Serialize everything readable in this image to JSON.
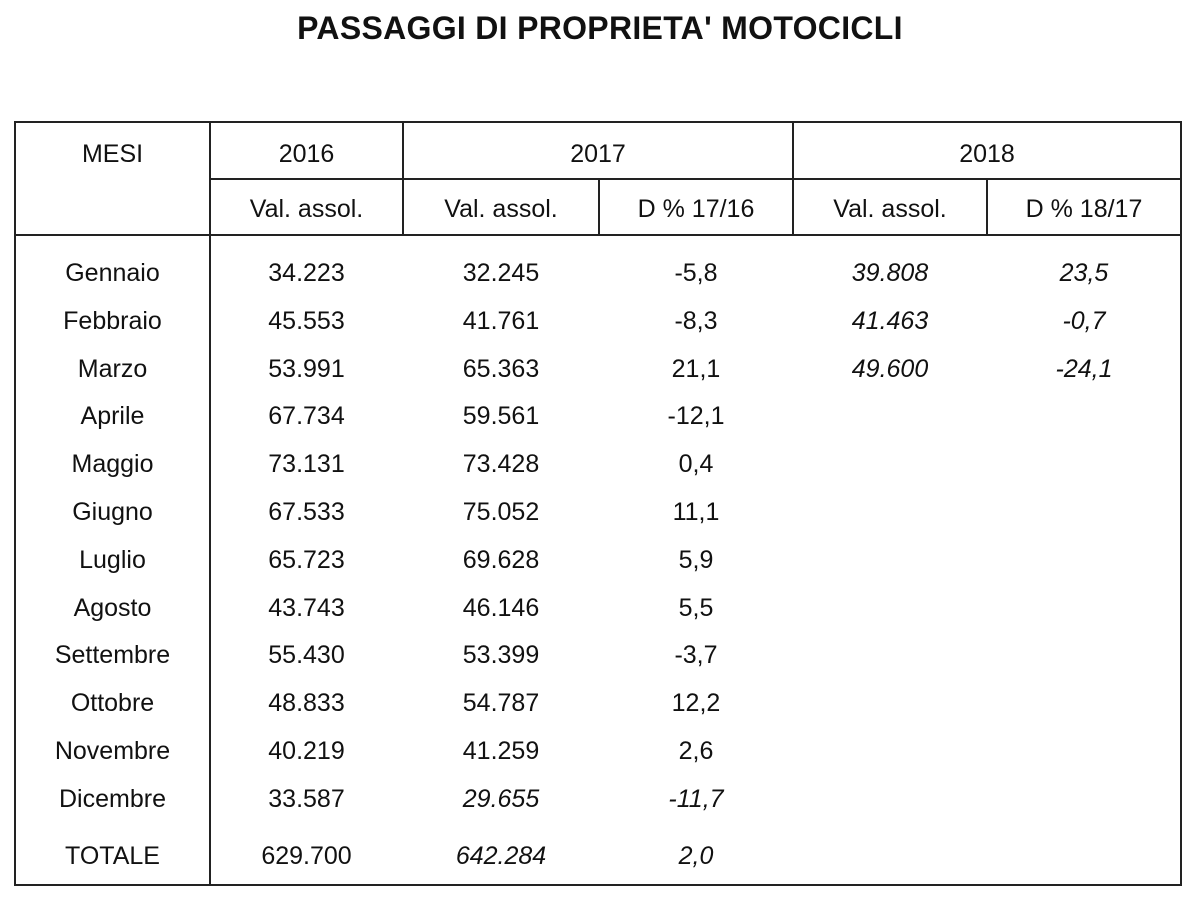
{
  "title": "PASSAGGI DI PROPRIETA' MOTOCICLI",
  "header": {
    "mesi": "MESI",
    "year_2016": "2016",
    "year_2017": "2017",
    "year_2018": "2018",
    "val_2016": "Val. assol.",
    "val_2017": "Val. assol.",
    "delta_17_16": "D % 17/16",
    "val_2018": "Val. assol.",
    "delta_18_17": "D % 18/17"
  },
  "rows": [
    {
      "mese": "Gennaio",
      "v2016": "34.223",
      "v2017": "32.245",
      "d1716": "-5,8",
      "v2018": "39.808",
      "d1817": "23,5"
    },
    {
      "mese": "Febbraio",
      "v2016": "45.553",
      "v2017": "41.761",
      "d1716": "-8,3",
      "v2018": "41.463",
      "d1817": "-0,7"
    },
    {
      "mese": "Marzo",
      "v2016": "53.991",
      "v2017": "65.363",
      "d1716": "21,1",
      "v2018": "49.600",
      "d1817": "-24,1"
    },
    {
      "mese": "Aprile",
      "v2016": "67.734",
      "v2017": "59.561",
      "d1716": "-12,1",
      "v2018": "",
      "d1817": ""
    },
    {
      "mese": "Maggio",
      "v2016": "73.131",
      "v2017": "73.428",
      "d1716": "0,4",
      "v2018": "",
      "d1817": ""
    },
    {
      "mese": "Giugno",
      "v2016": "67.533",
      "v2017": "75.052",
      "d1716": "11,1",
      "v2018": "",
      "d1817": ""
    },
    {
      "mese": "Luglio",
      "v2016": "65.723",
      "v2017": "69.628",
      "d1716": "5,9",
      "v2018": "",
      "d1817": ""
    },
    {
      "mese": "Agosto",
      "v2016": "43.743",
      "v2017": "46.146",
      "d1716": "5,5",
      "v2018": "",
      "d1817": ""
    },
    {
      "mese": "Settembre",
      "v2016": "55.430",
      "v2017": "53.399",
      "d1716": "-3,7",
      "v2018": "",
      "d1817": ""
    },
    {
      "mese": "Ottobre",
      "v2016": "48.833",
      "v2017": "54.787",
      "d1716": "12,2",
      "v2018": "",
      "d1817": ""
    },
    {
      "mese": "Novembre",
      "v2016": "40.219",
      "v2017": "41.259",
      "d1716": "2,6",
      "v2018": "",
      "d1817": ""
    },
    {
      "mese": "Dicembre",
      "v2016": "33.587",
      "v2017": "29.655",
      "d1716": "-11,7",
      "v2018": "",
      "d1817": ""
    }
  ],
  "totale": {
    "label": "TOTALE",
    "v2016": "629.700",
    "v2017": "642.284",
    "d1716": "2,0"
  }
}
